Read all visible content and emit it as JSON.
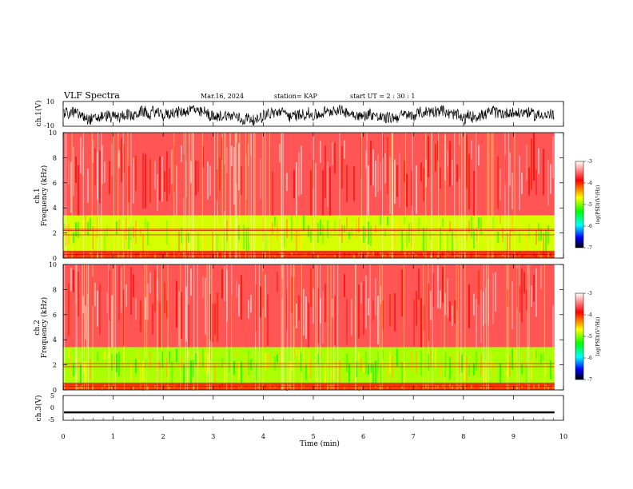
{
  "header": {
    "title": "VLF Spectra",
    "date": "Mar.16, 2024",
    "station": "station= KAP",
    "start_ut": "start  UT  =   2 : 30 : 1"
  },
  "colorbar": {
    "label": "log(PSD)(V²/Hz)",
    "ticks": [
      "-3",
      "-4",
      "-5",
      "-6",
      "-7"
    ],
    "colors": [
      "#ffffff",
      "#ff0000",
      "#ffff00",
      "#00ff00",
      "#00ffff",
      "#0000ff",
      "#000000"
    ]
  },
  "panels": {
    "ch1": {
      "ylabel": "ch.1(V)",
      "ticks": [
        "10",
        "-10"
      ]
    },
    "spec1": {
      "ylabel_line1": "ch.1",
      "ylabel_line2": "Frequency (kHz)",
      "ticks": [
        "10",
        "8",
        "6",
        "4",
        "2",
        "0"
      ]
    },
    "spec2": {
      "ylabel_line1": "ch.2",
      "ylabel_line2": "Frequency (kHz)",
      "ticks": [
        "10",
        "8",
        "6",
        "4",
        "2",
        "0"
      ]
    },
    "ch3": {
      "ylabel": "ch.3(V)",
      "ticks": [
        "5",
        "0",
        "-5"
      ]
    }
  },
  "chart_data": [
    {
      "type": "line",
      "name": "ch.1 waveform",
      "ylabel": "ch.1(V)",
      "ylim": [
        -10,
        10
      ],
      "xlim": [
        0,
        10
      ],
      "note_style": "noisy black trace oscillating around 0"
    },
    {
      "type": "heatmap",
      "ylabel": "ch.1 Frequency (kHz)",
      "xlim": [
        0,
        10
      ],
      "ylim": [
        0,
        10
      ],
      "zlabel": "log(PSD)(V²/Hz)",
      "zlim": [
        -7,
        -3
      ],
      "bands": [
        {
          "f_lo": 3.4,
          "f_hi": 10,
          "level": -3.6
        },
        {
          "f_lo": 0.5,
          "f_hi": 3.4,
          "level": -4.8
        },
        {
          "f_lo": 0,
          "f_hi": 0.5,
          "level": -4.1
        }
      ],
      "lines_khz": [
        2.2,
        2.3,
        1.85,
        0.55,
        0.45,
        0.3
      ]
    },
    {
      "type": "heatmap",
      "ylabel": "ch.2 Frequency (kHz)",
      "xlim": [
        0,
        10
      ],
      "ylim": [
        0,
        10
      ],
      "zlabel": "log(PSD)(V²/Hz)",
      "zlim": [
        -7,
        -3
      ],
      "bands": [
        {
          "f_lo": 3.4,
          "f_hi": 10,
          "level": -3.6
        },
        {
          "f_lo": 0.5,
          "f_hi": 3.4,
          "level": -4.9
        },
        {
          "f_lo": 0,
          "f_hi": 0.5,
          "level": -4.1
        }
      ],
      "lines_khz": [
        2.1,
        1.85,
        0.55,
        0.45,
        0.3
      ]
    },
    {
      "type": "line",
      "name": "ch.3 waveform",
      "ylabel": "ch.3(V)",
      "ylim": [
        -5,
        5
      ],
      "xlim": [
        0,
        10
      ],
      "band": [
        -2.2,
        -1.4
      ]
    }
  ],
  "xaxis": {
    "label": "Time (min)",
    "ticks": [
      "0",
      "1",
      "2",
      "3",
      "4",
      "5",
      "6",
      "7",
      "8",
      "9",
      "10"
    ],
    "data_end_min": 9.82
  }
}
